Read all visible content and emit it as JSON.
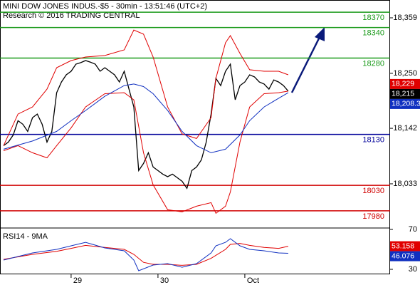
{
  "chart_data": [
    {
      "type": "line",
      "title": "MINI DOW JONES INDUS.-$5 - 30min - 13:51:46 (UTC+2)",
      "subtitle": "Research © 2016 TRADING CENTRAL",
      "xlim": [
        0,
        74.5
      ],
      "ylim": [
        17949,
        18394
      ],
      "yticks": [
        {
          "value": 18359,
          "label": "18,359"
        },
        {
          "value": 18250,
          "label": "18,250"
        },
        {
          "value": 18142,
          "label": "18,142"
        },
        {
          "value": 18033,
          "label": "18,033"
        }
      ],
      "levels": [
        {
          "value": 18370,
          "color": "#1a9a1a"
        },
        {
          "value": 18340,
          "color": "#1a9a1a"
        },
        {
          "value": 18280,
          "color": "#1a9a1a"
        },
        {
          "value": 18130,
          "color": "#00009a"
        },
        {
          "value": 18030,
          "color": "#d00000"
        },
        {
          "value": 17980,
          "color": "#d00000"
        }
      ],
      "last_labels": [
        {
          "value": 18229,
          "label": "18,229",
          "color": "#e00000"
        },
        {
          "value": 18215,
          "label": "18,215",
          "color": "#000000"
        },
        {
          "value": 18208.3,
          "label": "18,208.3",
          "color": "#1030c0"
        }
      ],
      "series": [
        {
          "color": "#000000",
          "x": [
            0,
            1,
            2,
            3,
            4,
            5,
            6,
            7,
            8,
            9,
            10,
            11,
            12,
            13,
            14,
            15,
            16,
            17,
            18,
            19,
            20,
            21,
            22,
            23,
            24,
            25,
            26,
            27,
            28,
            29,
            30,
            31,
            32,
            33,
            34,
            35,
            36,
            37,
            38,
            39,
            40,
            41,
            42,
            43,
            44,
            45,
            46,
            47,
            48,
            49,
            50,
            51,
            52,
            53,
            54,
            55,
            56,
            57,
            58,
            59
          ],
          "values": [
            18108,
            18115,
            18129,
            18157,
            18150,
            18136,
            18163,
            18170,
            18150,
            18115,
            18136,
            18212,
            18233,
            18247,
            18254,
            18268,
            18271,
            18275,
            18272,
            18268,
            18254,
            18261,
            18254,
            18247,
            18233,
            18254,
            18219,
            18184,
            18059,
            18073,
            18094,
            18066,
            18059,
            18052,
            18047,
            18052,
            18045,
            18038,
            18024,
            18059,
            18066,
            18080,
            18115,
            18170,
            18240,
            18226,
            18254,
            18268,
            18198,
            18226,
            18233,
            18247,
            18243,
            18233,
            18229,
            18219,
            18237,
            18233,
            18226,
            18215
          ]
        },
        {
          "color": "#e00000",
          "x": [
            0,
            3,
            6,
            9,
            11,
            14,
            17,
            21,
            25,
            27,
            29,
            31,
            34,
            37,
            40,
            43,
            44,
            46,
            47,
            49,
            51,
            54,
            57,
            59
          ],
          "values": [
            18108,
            18170,
            18184,
            18219,
            18261,
            18275,
            18282,
            18285,
            18296,
            18335,
            18327,
            18282,
            18184,
            18131,
            18122,
            18163,
            18240,
            18310,
            18324,
            18289,
            18257,
            18254,
            18254,
            18247
          ]
        },
        {
          "color": "#e00000",
          "x": [
            0,
            3,
            6,
            9,
            11,
            14,
            17,
            21,
            25,
            27,
            29,
            31,
            34,
            37,
            40,
            43,
            44,
            46,
            47,
            49,
            51,
            54,
            57,
            59
          ],
          "values": [
            18098,
            18108,
            18094,
            18084,
            18108,
            18143,
            18184,
            18210,
            18212,
            18198,
            18094,
            18031,
            17982,
            17978,
            17989,
            17996,
            17975,
            17989,
            18017,
            18115,
            18184,
            18210,
            18212,
            18215
          ]
        },
        {
          "color": "#1030c0",
          "x": [
            0,
            6,
            11,
            14,
            17,
            21,
            25,
            27,
            29,
            31,
            34,
            37,
            40,
            43,
            46,
            49,
            51,
            54,
            57,
            59
          ],
          "values": [
            18101,
            18117,
            18136,
            18157,
            18177,
            18205,
            18226,
            18229,
            18224,
            18210,
            18177,
            18136,
            18108,
            18094,
            18101,
            18129,
            18157,
            18184,
            18201,
            18212
          ]
        }
      ]
    },
    {
      "type": "line",
      "title": "RSI14 - 9MA",
      "xlim": [
        0,
        74.5
      ],
      "ylim": [
        25,
        70
      ],
      "yticks": [
        70,
        30
      ],
      "xticks": [
        {
          "value": 14,
          "label": "29"
        },
        {
          "value": 32,
          "label": "30"
        },
        {
          "value": 50,
          "label": "Oct"
        }
      ],
      "series": [
        {
          "color": "#e00000",
          "x": [
            0,
            6,
            11,
            14,
            17,
            21,
            25,
            27,
            29,
            31,
            34,
            37,
            40,
            43,
            46,
            47,
            49,
            51,
            54,
            57,
            59
          ],
          "values": [
            40,
            45,
            48,
            51,
            54,
            52,
            50,
            45,
            37,
            35,
            35,
            34,
            35,
            41,
            50,
            55,
            56,
            54,
            52,
            51,
            53.158
          ]
        },
        {
          "color": "#1030c0",
          "x": [
            0,
            6,
            11,
            14,
            17,
            21,
            25,
            27,
            28,
            31,
            34,
            37,
            40,
            43,
            44,
            46,
            47,
            49,
            51,
            54,
            57,
            59
          ],
          "values": [
            39.3,
            46.4,
            50,
            53.6,
            57.1,
            51.4,
            48.6,
            39.3,
            28.6,
            34.3,
            35.7,
            32.1,
            35.7,
            46.4,
            53.6,
            57.1,
            60.7,
            53.6,
            50,
            48.6,
            46.4,
            46.076
          ]
        }
      ]
    }
  ]
}
